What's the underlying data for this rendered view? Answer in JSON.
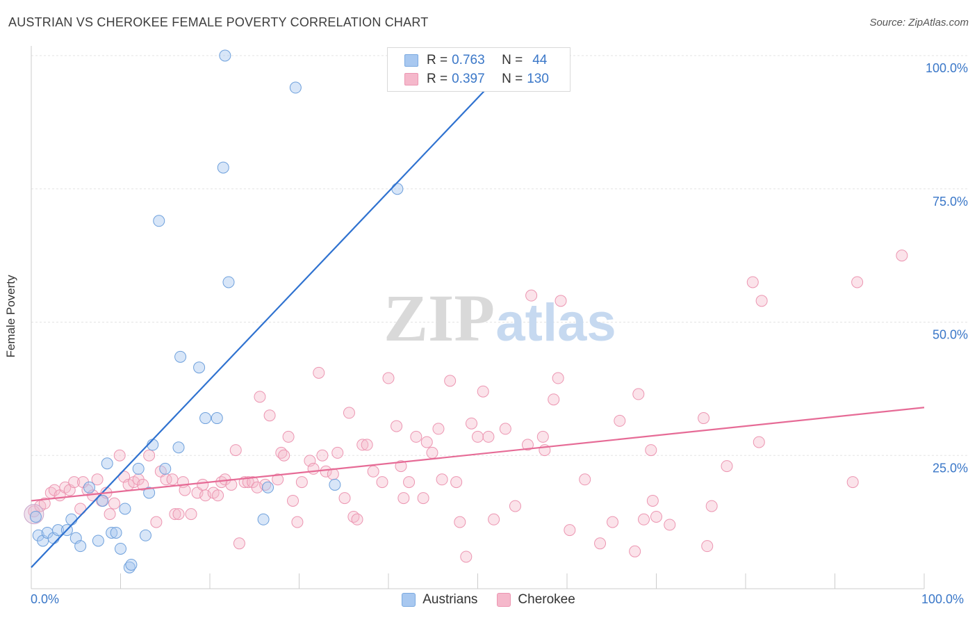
{
  "header": {
    "title": "AUSTRIAN VS CHEROKEE FEMALE POVERTY CORRELATION CHART",
    "source": "Source: ZipAtlas.com"
  },
  "legend": {
    "rows": [
      {
        "r_label": "R =",
        "r_value": "0.763",
        "n_label": "N =",
        "n_value": "44",
        "color": "#a8c8f0"
      },
      {
        "r_label": "R =",
        "r_value": "0.397",
        "n_label": "N =",
        "n_value": "130",
        "color": "#f5b8cb"
      }
    ]
  },
  "bottom_legend": {
    "items": [
      {
        "label": "Austrians",
        "color": "#a8c8f0"
      },
      {
        "label": "Cherokee",
        "color": "#f5b8cb"
      }
    ]
  },
  "colors": {
    "blue_line": "#2f72d0",
    "pink_line": "#e66b96",
    "blue_fill": "#a8c8f0",
    "pink_fill": "#f5b8cb",
    "axis_text": "#3a77c8"
  },
  "chart_data": {
    "type": "scatter",
    "title": "AUSTRIAN VS CHEROKEE FEMALE POVERTY CORRELATION CHART",
    "xlabel": "",
    "ylabel": "Female Poverty",
    "xlim": [
      0,
      100
    ],
    "ylim": [
      0,
      100
    ],
    "x_tick_labels": [
      "0.0%",
      "100.0%"
    ],
    "y_ticks": [
      25,
      50,
      75,
      100
    ],
    "y_tick_labels": [
      "25.0%",
      "50.0%",
      "75.0%",
      "100.0%"
    ],
    "grid": true,
    "legend_position": "top-center",
    "series": [
      {
        "name": "Austrians",
        "r": 0.763,
        "n": 44,
        "trend": {
          "x": [
            0,
            54.5
          ],
          "y": [
            4,
            100
          ]
        },
        "points": [
          [
            0.5,
            13.5
          ],
          [
            0.8,
            10
          ],
          [
            1.3,
            9
          ],
          [
            1.8,
            10.5
          ],
          [
            2.5,
            9.5
          ],
          [
            3.0,
            11
          ],
          [
            4.0,
            11
          ],
          [
            4.5,
            13
          ],
          [
            5.0,
            9.5
          ],
          [
            5.5,
            8
          ],
          [
            6.5,
            19
          ],
          [
            7.5,
            9
          ],
          [
            8.0,
            16.5
          ],
          [
            8.5,
            23.5
          ],
          [
            9.0,
            10.5
          ],
          [
            9.5,
            10.5
          ],
          [
            10.0,
            7.5
          ],
          [
            10.5,
            15
          ],
          [
            11.0,
            4
          ],
          [
            11.2,
            4.5
          ],
          [
            12.0,
            22.5
          ],
          [
            12.8,
            10
          ],
          [
            13.2,
            18
          ],
          [
            13.6,
            27
          ],
          [
            14.3,
            69
          ],
          [
            15.0,
            22.5
          ],
          [
            16.5,
            26.5
          ],
          [
            16.7,
            43.5
          ],
          [
            18.8,
            41.5
          ],
          [
            19.5,
            32
          ],
          [
            20.8,
            32
          ],
          [
            21.5,
            79
          ],
          [
            21.7,
            100
          ],
          [
            22.1,
            57.5
          ],
          [
            26.5,
            19
          ],
          [
            26.0,
            13
          ],
          [
            29.6,
            94
          ],
          [
            34.0,
            19.5
          ],
          [
            41.0,
            75
          ]
        ]
      },
      {
        "name": "Cherokee",
        "r": 0.397,
        "n": 130,
        "trend": {
          "x": [
            0,
            100
          ],
          "y": [
            16.5,
            34
          ]
        },
        "points": [
          [
            0.3,
            14.5
          ],
          [
            1.0,
            15.5
          ],
          [
            1.5,
            16
          ],
          [
            2.2,
            18
          ],
          [
            2.6,
            18.5
          ],
          [
            3.2,
            17.5
          ],
          [
            3.8,
            19
          ],
          [
            4.3,
            18.5
          ],
          [
            4.8,
            20
          ],
          [
            5.5,
            15
          ],
          [
            5.8,
            20
          ],
          [
            6.3,
            18.5
          ],
          [
            6.9,
            17.5
          ],
          [
            7.4,
            20.5
          ],
          [
            7.9,
            16.5
          ],
          [
            8.4,
            18
          ],
          [
            8.8,
            14
          ],
          [
            9.3,
            16
          ],
          [
            9.9,
            25
          ],
          [
            10.4,
            21
          ],
          [
            10.9,
            19.5
          ],
          [
            11.5,
            20
          ],
          [
            12.0,
            20.5
          ],
          [
            12.5,
            19.5
          ],
          [
            13.2,
            25
          ],
          [
            14.0,
            12.5
          ],
          [
            14.5,
            22
          ],
          [
            15.1,
            20.5
          ],
          [
            15.8,
            20.5
          ],
          [
            16.1,
            14
          ],
          [
            16.5,
            14
          ],
          [
            17.0,
            20
          ],
          [
            17.2,
            18.5
          ],
          [
            17.9,
            14
          ],
          [
            18.6,
            18
          ],
          [
            19.2,
            19.5
          ],
          [
            19.5,
            17.5
          ],
          [
            20.4,
            18
          ],
          [
            20.9,
            17.5
          ],
          [
            21.3,
            20
          ],
          [
            21.7,
            20.5
          ],
          [
            22.4,
            19.5
          ],
          [
            22.9,
            26
          ],
          [
            23.3,
            8.5
          ],
          [
            23.9,
            20
          ],
          [
            24.3,
            20
          ],
          [
            24.8,
            20
          ],
          [
            25.3,
            19
          ],
          [
            25.6,
            36
          ],
          [
            26.2,
            19.5
          ],
          [
            26.7,
            32.5
          ],
          [
            27.6,
            20.5
          ],
          [
            28.0,
            25.5
          ],
          [
            28.3,
            25
          ],
          [
            28.8,
            28.5
          ],
          [
            29.3,
            16.5
          ],
          [
            29.8,
            12.5
          ],
          [
            30.3,
            20
          ],
          [
            31.2,
            24
          ],
          [
            31.6,
            22.5
          ],
          [
            32.2,
            40.5
          ],
          [
            32.6,
            25
          ],
          [
            33.0,
            22
          ],
          [
            33.8,
            21.5
          ],
          [
            34.3,
            25.5
          ],
          [
            35.1,
            17
          ],
          [
            35.6,
            33
          ],
          [
            36.1,
            13.5
          ],
          [
            36.5,
            13
          ],
          [
            37.1,
            27
          ],
          [
            37.6,
            27
          ],
          [
            38.3,
            22
          ],
          [
            39.3,
            20
          ],
          [
            40.0,
            39.5
          ],
          [
            40.9,
            30.5
          ],
          [
            41.4,
            23
          ],
          [
            41.7,
            17
          ],
          [
            42.3,
            20
          ],
          [
            43.1,
            28.5
          ],
          [
            43.9,
            17
          ],
          [
            44.3,
            27.5
          ],
          [
            44.9,
            25.5
          ],
          [
            45.6,
            30
          ],
          [
            46.0,
            20.5
          ],
          [
            46.9,
            39
          ],
          [
            47.6,
            20
          ],
          [
            48.0,
            12.5
          ],
          [
            48.7,
            6
          ],
          [
            49.3,
            31
          ],
          [
            50.0,
            28.5
          ],
          [
            50.6,
            37
          ],
          [
            51.2,
            28.5
          ],
          [
            51.8,
            13
          ],
          [
            53.1,
            30
          ],
          [
            54.2,
            15.5
          ],
          [
            55.6,
            27
          ],
          [
            56.0,
            55
          ],
          [
            57.3,
            28.5
          ],
          [
            57.5,
            26
          ],
          [
            58.5,
            35.5
          ],
          [
            59.0,
            39.5
          ],
          [
            59.3,
            54
          ],
          [
            60.3,
            11
          ],
          [
            62.0,
            20.5
          ],
          [
            63.7,
            8.5
          ],
          [
            65.1,
            12.5
          ],
          [
            65.9,
            31.5
          ],
          [
            67.6,
            7
          ],
          [
            68.0,
            36.5
          ],
          [
            68.6,
            13
          ],
          [
            69.4,
            26
          ],
          [
            69.6,
            16.5
          ],
          [
            70.0,
            13.5
          ],
          [
            71.5,
            12
          ],
          [
            75.3,
            32
          ],
          [
            75.7,
            8
          ],
          [
            76.2,
            15.5
          ],
          [
            77.9,
            23
          ],
          [
            80.8,
            57.5
          ],
          [
            81.5,
            27.5
          ],
          [
            81.8,
            54
          ],
          [
            92.0,
            20
          ],
          [
            92.5,
            57.5
          ],
          [
            97.5,
            62.5
          ]
        ]
      }
    ]
  }
}
